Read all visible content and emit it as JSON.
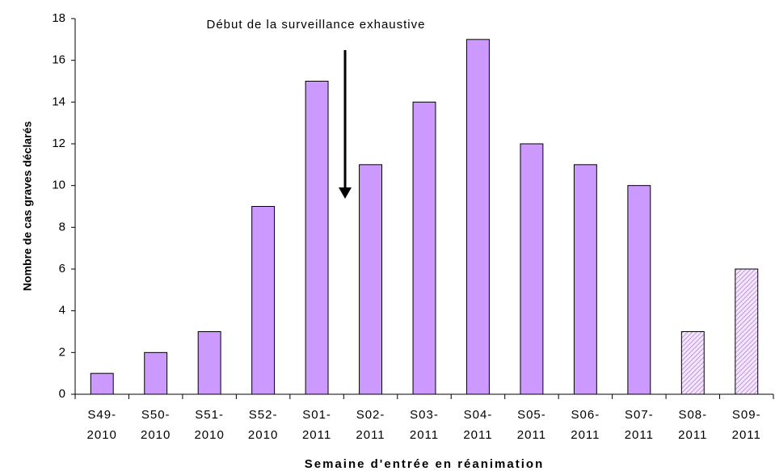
{
  "chart_data": {
    "type": "bar",
    "categories": [
      [
        "S49-",
        "2010"
      ],
      [
        "S50-",
        "2010"
      ],
      [
        "S51-",
        "2010"
      ],
      [
        "S52-",
        "2010"
      ],
      [
        "S01-",
        "2011"
      ],
      [
        "S02-",
        "2011"
      ],
      [
        "S03-",
        "2011"
      ],
      [
        "S04-",
        "2011"
      ],
      [
        "S05-",
        "2011"
      ],
      [
        "S06-",
        "2011"
      ],
      [
        "S07-",
        "2011"
      ],
      [
        "S08-",
        "2011"
      ],
      [
        "S09-",
        "2011"
      ]
    ],
    "values": [
      1,
      2,
      3,
      9,
      15,
      11,
      14,
      17,
      12,
      11,
      10,
      3,
      6
    ],
    "hatched": [
      false,
      false,
      false,
      false,
      false,
      false,
      false,
      false,
      false,
      false,
      false,
      true,
      true
    ],
    "color": "#cc99ff",
    "ylim": [
      0,
      18
    ],
    "yticks": [
      0,
      2,
      4,
      6,
      8,
      10,
      12,
      14,
      16,
      18
    ],
    "xlabel": "Semaine d'entrée en réanimation",
    "ylabel": "Nombre de cas graves déclarés",
    "annotation": "Début de la surveillance exhaustive",
    "grid": false
  }
}
